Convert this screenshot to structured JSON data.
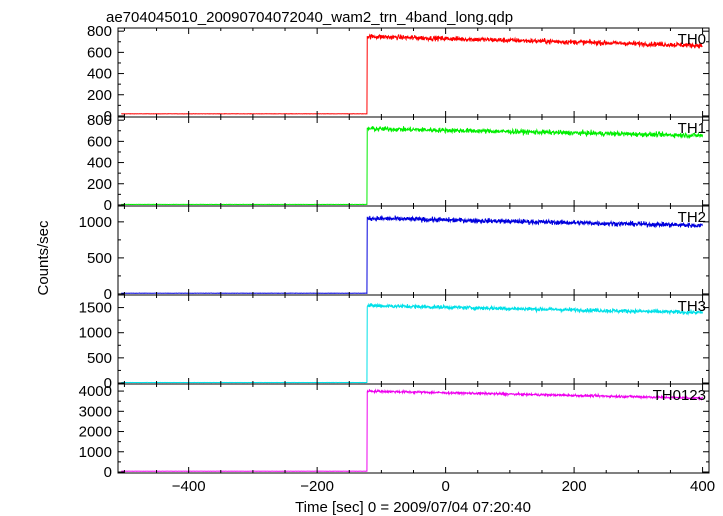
{
  "chart_data": {
    "type": "line",
    "title": "ae704045010_20090704072040_wam2_trn_4band_long.qdp",
    "xlabel": "Time [sec] 0 = 2009/07/04 07:20:40",
    "ylabel": "Counts/sec",
    "xlim": [
      -510,
      410
    ],
    "xticks": [
      -400,
      -200,
      0,
      200,
      400
    ],
    "grid": false,
    "trigger_time": -122,
    "panels": [
      {
        "name": "TH0",
        "color": "#ff0000",
        "ylim": [
          -10,
          830
        ],
        "yticks": [
          0,
          200,
          400,
          600,
          800
        ],
        "pre_level": 20,
        "post_start": 750,
        "post_end": 665,
        "noise": 22
      },
      {
        "name": "TH1",
        "color": "#00ee00",
        "ylim": [
          -10,
          830
        ],
        "yticks": [
          0,
          200,
          400,
          600,
          800
        ],
        "pre_level": 5,
        "post_start": 720,
        "post_end": 655,
        "noise": 22
      },
      {
        "name": "TH2",
        "color": "#0000dd",
        "ylim": [
          -15,
          1220
        ],
        "yticks": [
          0,
          500,
          1000
        ],
        "pre_level": 10,
        "post_start": 1050,
        "post_end": 950,
        "noise": 32
      },
      {
        "name": "TH3",
        "color": "#00e0e8",
        "ylim": [
          -20,
          1750
        ],
        "yticks": [
          0,
          500,
          1000,
          1500
        ],
        "pre_level": 10,
        "post_start": 1540,
        "post_end": 1400,
        "noise": 38
      },
      {
        "name": "TH0123",
        "color": "#ee00ee",
        "ylim": [
          -50,
          4350
        ],
        "yticks": [
          0,
          1000,
          2000,
          3000,
          4000
        ],
        "pre_level": 40,
        "post_start": 4000,
        "post_end": 3650,
        "noise": 55
      }
    ]
  }
}
